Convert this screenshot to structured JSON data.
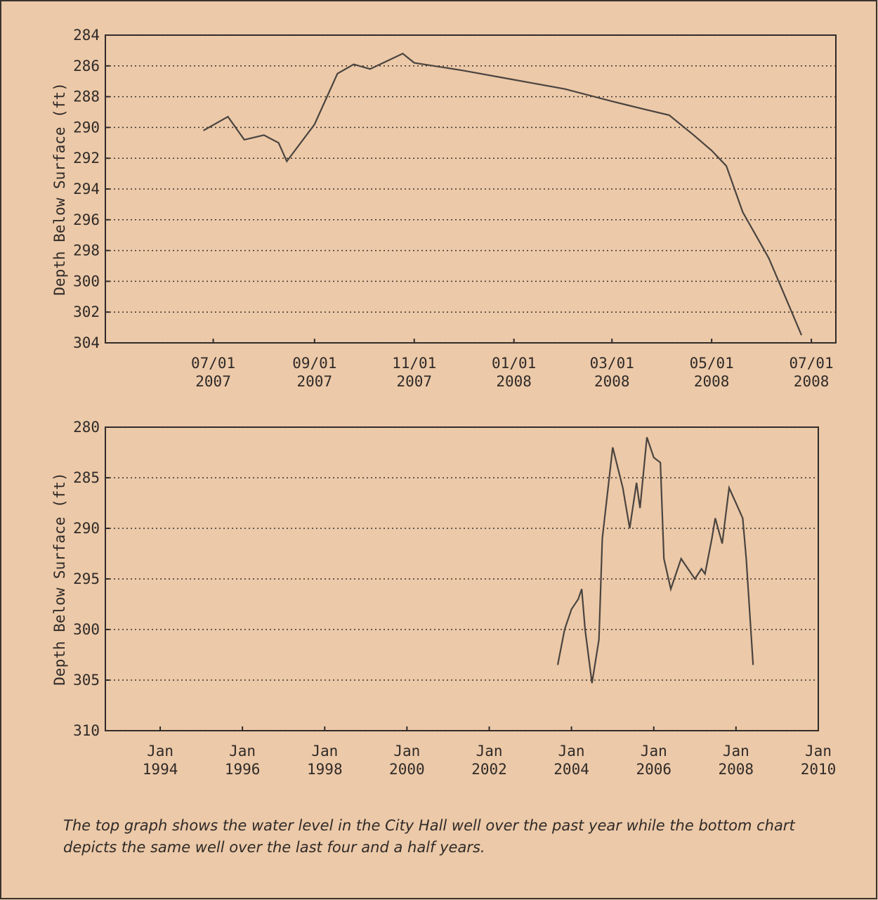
{
  "chart_data": [
    {
      "type": "line",
      "y_label": "Depth Below Surface (ft)",
      "color": "#4a4440",
      "ylim": [
        284,
        304
      ],
      "y_inverted": true,
      "yticks": [
        284,
        286,
        288,
        290,
        292,
        294,
        296,
        298,
        300,
        302,
        304
      ],
      "grid": true,
      "xlim": [
        "2007-04-26",
        "2008-07-16"
      ],
      "xticks": [
        {
          "value": "2007-07-01",
          "label": "07/01 2007"
        },
        {
          "value": "2007-09-01",
          "label": "09/01 2007"
        },
        {
          "value": "2007-11-01",
          "label": "11/01 2007"
        },
        {
          "value": "2008-01-01",
          "label": "01/01 2008"
        },
        {
          "value": "2008-03-01",
          "label": "03/01 2008"
        },
        {
          "value": "2008-05-01",
          "label": "05/01 2008"
        },
        {
          "value": "2008-07-01",
          "label": "07/01 2008"
        }
      ],
      "x": [
        "2007-06-25",
        "2007-07-10",
        "2007-07-20",
        "2007-08-01",
        "2007-08-10",
        "2007-08-15",
        "2007-09-01",
        "2007-09-15",
        "2007-09-25",
        "2007-10-05",
        "2007-10-15",
        "2007-10-25",
        "2007-11-01",
        "2007-12-01",
        "2008-01-01",
        "2008-02-01",
        "2008-03-01",
        "2008-03-20",
        "2008-04-05",
        "2008-04-20",
        "2008-05-01",
        "2008-05-10",
        "2008-05-20",
        "2008-05-28",
        "2008-06-05",
        "2008-06-15",
        "2008-06-25"
      ],
      "values": [
        290.2,
        289.3,
        290.8,
        290.5,
        291.0,
        292.2,
        289.8,
        286.5,
        285.9,
        286.2,
        285.7,
        285.2,
        285.8,
        286.3,
        286.9,
        287.5,
        288.3,
        288.8,
        289.2,
        290.5,
        291.5,
        292.5,
        295.5,
        297.0,
        298.5,
        301.0,
        303.5
      ]
    },
    {
      "type": "line",
      "y_label": "Depth Below Surface (ft)",
      "color": "#4a4440",
      "ylim": [
        280,
        310
      ],
      "y_inverted": true,
      "yticks": [
        280,
        285,
        290,
        295,
        300,
        305,
        310
      ],
      "grid": true,
      "xlim": [
        "1992-09",
        "2010-01"
      ],
      "xticks": [
        {
          "value": "1994-01",
          "label": "Jan 1994"
        },
        {
          "value": "1996-01",
          "label": "Jan 1996"
        },
        {
          "value": "1998-01",
          "label": "Jan 1998"
        },
        {
          "value": "2000-01",
          "label": "Jan 2000"
        },
        {
          "value": "2002-01",
          "label": "Jan 2002"
        },
        {
          "value": "2004-01",
          "label": "Jan 2004"
        },
        {
          "value": "2006-01",
          "label": "Jan 2006"
        },
        {
          "value": "2008-01",
          "label": "Jan 2008"
        },
        {
          "value": "2010-01",
          "label": "Jan 2010"
        }
      ],
      "x": [
        "2003-09",
        "2003-11",
        "2004-01",
        "2004-03",
        "2004-04",
        "2004-05",
        "2004-07",
        "2004-09",
        "2004-10",
        "2005-01",
        "2005-04",
        "2005-06",
        "2005-08",
        "2005-09",
        "2005-11",
        "2006-01",
        "2006-03",
        "2006-04",
        "2006-06",
        "2006-09",
        "2007-01",
        "2007-03",
        "2007-04",
        "2007-06",
        "2007-07",
        "2007-09",
        "2007-11",
        "2008-01",
        "2008-03",
        "2008-04",
        "2008-06"
      ],
      "values": [
        303.5,
        300,
        298,
        297,
        296,
        300,
        305.3,
        301,
        291,
        282,
        286,
        290,
        285.5,
        288,
        281,
        283,
        283.5,
        293,
        296,
        293,
        295,
        294,
        294.5,
        291,
        289,
        291.5,
        286,
        287.5,
        289,
        293,
        303.5
      ]
    }
  ],
  "caption": "The top graph shows the water level in the City Hall well over the past year while the bottom chart depicts the same well over the last four and a half years."
}
